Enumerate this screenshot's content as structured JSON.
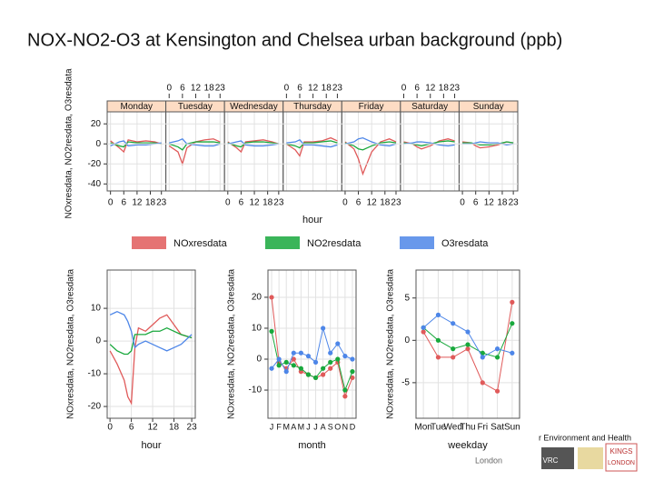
{
  "title": "NOX-NO2-O3 at Kensington and Chelsea urban background (ppb)",
  "chart_data": [
    {
      "type": "line",
      "facets": [
        "Monday",
        "Tuesday",
        "Wednesday",
        "Thursday",
        "Friday",
        "Saturday",
        "Sunday"
      ],
      "x": [
        0,
        4,
        6,
        8,
        12,
        16,
        20,
        23
      ],
      "xlim": [
        -1.5,
        25
      ],
      "xticks": [
        0,
        6,
        12,
        18,
        23
      ],
      "xlabel": "hour",
      "ylim": [
        -47,
        32
      ],
      "yticks": [
        -40,
        -20,
        0,
        20
      ],
      "ylabel": "NOxresdata, NO2resdata, O3resdata",
      "grid": true,
      "series": [
        {
          "name": "NOxresdata",
          "color": "#e05a5a",
          "values": [
            [
              3,
              -4,
              -8,
              4,
              2,
              3,
              2,
              0
            ],
            [
              -2,
              -8,
              -20,
              -4,
              2,
              4,
              5,
              2
            ],
            [
              2,
              -4,
              -8,
              2,
              3,
              4,
              2,
              0
            ],
            [
              0,
              -6,
              -12,
              2,
              2,
              3,
              6,
              3
            ],
            [
              2,
              -5,
              -15,
              -30,
              -8,
              2,
              5,
              2
            ],
            [
              2,
              0,
              -3,
              -5,
              -2,
              3,
              5,
              3
            ],
            [
              2,
              1,
              -2,
              -4,
              -3,
              -1,
              2,
              1
            ]
          ]
        },
        {
          "name": "NO2resdata",
          "color": "#18a83c",
          "values": [
            [
              1,
              -2,
              -3,
              2,
              1,
              1,
              1,
              0
            ],
            [
              0,
              -3,
              -6,
              0,
              2,
              2,
              2,
              1
            ],
            [
              1,
              -2,
              -3,
              1,
              2,
              2,
              1,
              0
            ],
            [
              0,
              -2,
              -4,
              1,
              1,
              2,
              3,
              1
            ],
            [
              1,
              -2,
              -5,
              -6,
              -2,
              1,
              2,
              1
            ],
            [
              1,
              0,
              -1,
              -2,
              0,
              2,
              3,
              2
            ],
            [
              1,
              1,
              0,
              -1,
              -1,
              0,
              2,
              1
            ]
          ]
        },
        {
          "name": "O3resdata",
          "color": "#4d86e8",
          "values": [
            [
              -2,
              2,
              3,
              -2,
              -1,
              -1,
              0,
              1
            ],
            [
              1,
              3,
              5,
              0,
              -1,
              -2,
              -2,
              0
            ],
            [
              0,
              2,
              3,
              -1,
              -2,
              -2,
              -1,
              0
            ],
            [
              1,
              2,
              4,
              -1,
              -1,
              -2,
              -3,
              -1
            ],
            [
              0,
              2,
              5,
              6,
              2,
              -1,
              -2,
              0
            ],
            [
              0,
              1,
              2,
              2,
              1,
              -1,
              -2,
              -1
            ],
            [
              0,
              0,
              1,
              2,
              1,
              1,
              -1,
              0
            ]
          ]
        }
      ]
    },
    {
      "type": "line",
      "x": [
        0,
        2,
        4,
        5,
        6,
        7,
        8,
        10,
        12,
        14,
        16,
        18,
        20,
        23
      ],
      "xlim": [
        -0.8,
        24
      ],
      "xticks": [
        0,
        6,
        12,
        18,
        23
      ],
      "xlabel": "hour",
      "ylim": [
        -23.6,
        21.7
      ],
      "yticks": [
        -20,
        -10,
        0,
        10
      ],
      "ylabel": "NOxresdata, NO2resdata, O3resdata",
      "grid": true,
      "series": [
        {
          "color": "#e05a5a",
          "values": [
            -3,
            -7,
            -12,
            -17,
            -19,
            -2,
            4,
            3,
            5,
            7,
            8,
            5,
            2,
            1
          ]
        },
        {
          "color": "#18a83c",
          "values": [
            -1,
            -3,
            -4,
            -4,
            -3,
            2,
            2,
            2,
            3,
            3,
            4,
            3,
            2,
            1
          ]
        },
        {
          "color": "#4d86e8",
          "values": [
            8,
            9,
            8,
            6,
            3,
            -2,
            -1,
            0,
            -1,
            -2,
            -3,
            -2,
            -1,
            2
          ]
        }
      ]
    },
    {
      "type": "points",
      "categories": [
        "J",
        "F",
        "M",
        "A",
        "M",
        "J",
        "J",
        "A",
        "S",
        "O",
        "N",
        "D"
      ],
      "xlabel": "month",
      "ylim": [
        -19.1,
        28.8
      ],
      "yticks": [
        -10,
        0,
        10,
        20
      ],
      "ylabel": "NOxresdata, NO2resdata, O3resdata",
      "grid": true,
      "series": [
        {
          "color": "#e05a5a",
          "values": [
            20,
            -1,
            -3,
            0,
            -4,
            -5,
            -6,
            -5,
            -3,
            -1,
            -12,
            -6
          ]
        },
        {
          "color": "#18a83c",
          "values": [
            9,
            -2,
            -1,
            -2,
            -3,
            -5,
            -6,
            -3,
            -1,
            0,
            -10,
            -4
          ]
        },
        {
          "color": "#4d86e8",
          "values": [
            -3,
            0,
            -4,
            2,
            2,
            1,
            -1,
            10,
            2,
            5,
            1,
            0
          ]
        }
      ]
    },
    {
      "type": "points",
      "categories": [
        "Mon",
        "Tue",
        "Wed",
        "Thu",
        "Fri",
        "Sat",
        "Sun"
      ],
      "xlabel": "weekday",
      "ylim": [
        -9.2,
        8.3
      ],
      "yticks": [
        -5,
        0,
        5
      ],
      "ylabel": "NOxresdata, NO2resdata, O3resdata",
      "grid": true,
      "series": [
        {
          "color": "#e05a5a",
          "values": [
            1,
            -2,
            -2,
            -1,
            -5,
            -6,
            4.5
          ]
        },
        {
          "color": "#18a83c",
          "values": [
            1.5,
            0,
            -1,
            -0.5,
            -1.5,
            -2,
            2
          ]
        },
        {
          "color": "#4d86e8",
          "values": [
            1.5,
            3,
            2,
            1,
            -2,
            -1,
            -1.5
          ]
        }
      ]
    }
  ],
  "footer": {
    "text": "r Environment and Health",
    "city": "London",
    "logo1": "VRC",
    "logo2": "KINGS",
    "logo3": "LONDON"
  }
}
